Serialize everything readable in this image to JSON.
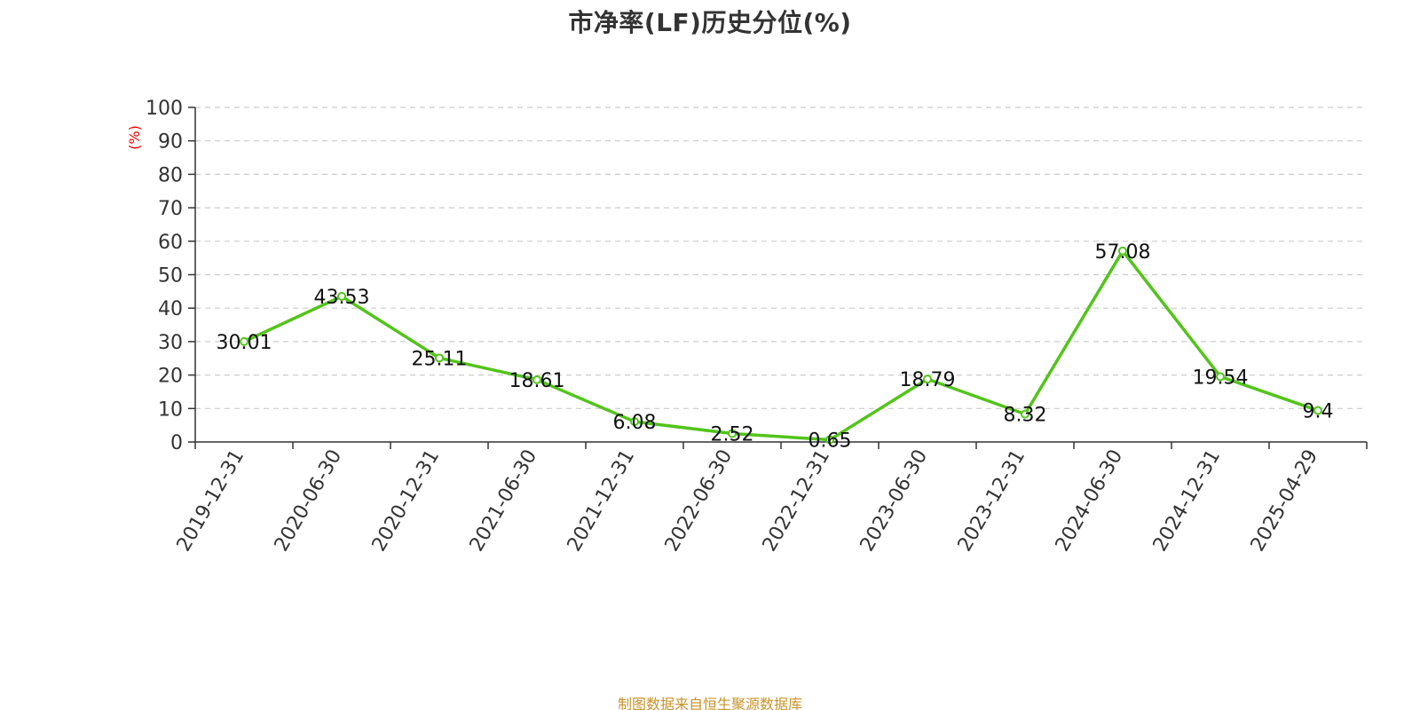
{
  "chart_data": {
    "type": "line",
    "title": "市净率(LF)历史分位(%)",
    "ylabel": "(%)",
    "xlabel": "",
    "ylim": [
      0,
      100
    ],
    "yticks": [
      0,
      10,
      20,
      30,
      40,
      50,
      60,
      70,
      80,
      90,
      100
    ],
    "grid": true,
    "categories": [
      "2019-12-31",
      "2020-06-30",
      "2020-12-31",
      "2021-06-30",
      "2021-12-31",
      "2022-06-30",
      "2022-12-31",
      "2023-06-30",
      "2023-12-31",
      "2024-06-30",
      "2024-12-31",
      "2025-04-29"
    ],
    "series": [
      {
        "values": [
          30.01,
          43.53,
          25.11,
          18.61,
          6.08,
          2.52,
          0.65,
          18.79,
          8.32,
          57.08,
          19.54,
          9.4
        ],
        "data_labels": [
          "30.01",
          "43.53",
          "25.11",
          "18.61",
          "6.08",
          "2.52",
          "0.65",
          "18.79",
          "8.32",
          "57.08",
          "19.54",
          "9.4"
        ]
      }
    ],
    "colors": {
      "line": "#52c41a",
      "ylabel": "#ff0000",
      "grid": "#cccccc",
      "axis": "#333333"
    }
  },
  "footer": {
    "source": "制图数据来自恒生聚源数据库"
  }
}
